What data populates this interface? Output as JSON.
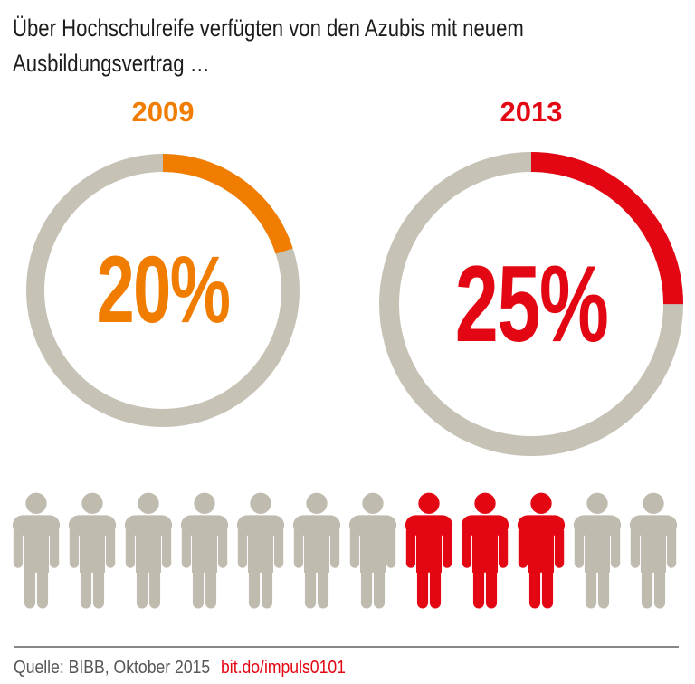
{
  "title": {
    "line1": "Über Hochschulreife verfügten von den Azubis mit neuem",
    "line2": "Ausbildungsvertrag …"
  },
  "chart_data": {
    "type": "pie",
    "variant": "double-donut-with-pictogram",
    "title": "Über Hochschulreife verfügten von den Azubis mit neuem Ausbildungsvertrag …",
    "unit": "%",
    "ring_color": "#C6C2B6",
    "legend_position": "above-each-donut",
    "series": [
      {
        "year": "2009",
        "value": 20,
        "label": "20%",
        "color": "#F07D00"
      },
      {
        "year": "2013",
        "value": 25,
        "label": "25%",
        "color": "#E30613"
      }
    ],
    "pictogram": {
      "total": 12,
      "highlighted": 3,
      "highlight_start_index": 7,
      "base_color": "#BFBBAF",
      "highlight_color": "#E30613",
      "meaning": "3 of 12 figures highlighted = 25%"
    }
  },
  "footer": {
    "source": "Quelle: BIBB, Oktober 2015",
    "link": "bit.do/impuls0101"
  },
  "colors": {
    "background": "#FFFFFF",
    "title_text": "#1D1D1B",
    "footer_text": "#575756",
    "divider": "#878787"
  }
}
